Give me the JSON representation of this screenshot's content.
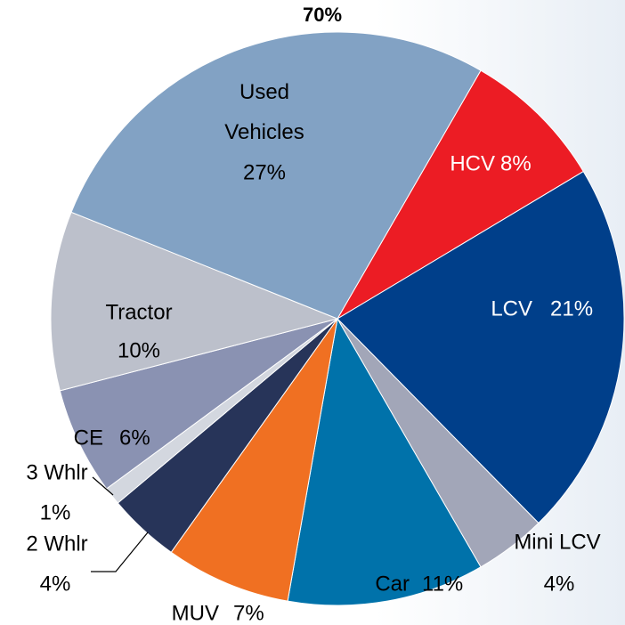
{
  "chart_data": {
    "type": "pie",
    "title": "70%",
    "categories": [
      "HCV",
      "LCV",
      "Mini LCV",
      "Car",
      "MUV",
      "2 Whlr",
      "3 Whlr",
      "CE",
      "Tractor",
      "Used Vehicles"
    ],
    "values": [
      8,
      21,
      4,
      11,
      7,
      4,
      1,
      6,
      10,
      27
    ],
    "value_labels": [
      "8%",
      "21%",
      "4%",
      "11%",
      "7%",
      "4%",
      "1%",
      "6%",
      "10%",
      "27%"
    ],
    "colors": [
      "#ec1c24",
      "#003f8a",
      "#a2a6b8",
      "#0072aa",
      "#f07022",
      "#273459",
      "#d3d7df",
      "#8a92b2",
      "#bcc0cb",
      "#82a2c4"
    ]
  }
}
